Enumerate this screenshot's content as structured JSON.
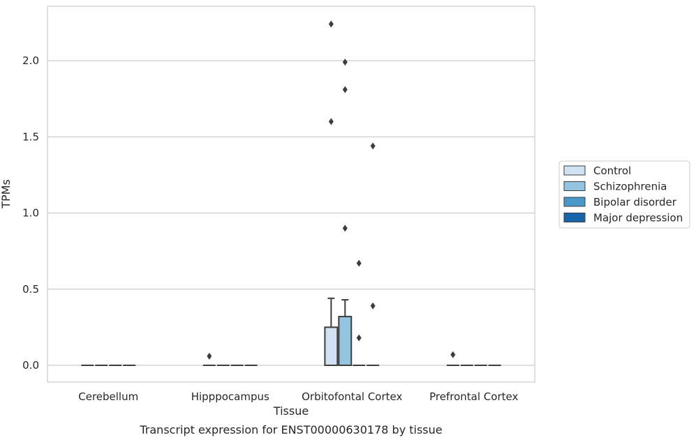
{
  "chart_data": {
    "type": "box",
    "title": "Transcript expression for ENST00000630178 by tissue",
    "xlabel": "Tissue",
    "ylabel": "TPMs",
    "ylim": [
      -0.11,
      2.36
    ],
    "yticks": [
      0.0,
      0.5,
      1.0,
      1.5,
      2.0
    ],
    "ytick_labels": [
      "0.0",
      "0.5",
      "1.0",
      "1.5",
      "2.0"
    ],
    "grid": "horizontal",
    "legend_position": "right",
    "categories": [
      "Cerebellum",
      "Hipppocampus",
      "Orbitofontal Cortex",
      "Prefrontal Cortex"
    ],
    "series": [
      {
        "name": "Control",
        "color": "#d0e1f2",
        "boxes": [
          {
            "q1": 0,
            "median": 0,
            "q3": 0,
            "whislo": 0,
            "whishi": 0,
            "fliers": []
          },
          {
            "q1": 0,
            "median": 0,
            "q3": 0,
            "whislo": 0,
            "whishi": 0,
            "fliers": [
              0.06
            ]
          },
          {
            "q1": 0,
            "median": 0,
            "q3": 0.25,
            "whislo": 0,
            "whishi": 0.44,
            "fliers": [
              2.24,
              1.6
            ]
          },
          {
            "q1": 0,
            "median": 0,
            "q3": 0,
            "whislo": 0,
            "whishi": 0,
            "fliers": [
              0.07
            ]
          }
        ]
      },
      {
        "name": "Schizophrenia",
        "color": "#94c4df",
        "boxes": [
          {
            "q1": 0,
            "median": 0,
            "q3": 0,
            "whislo": 0,
            "whishi": 0,
            "fliers": []
          },
          {
            "q1": 0,
            "median": 0,
            "q3": 0,
            "whislo": 0,
            "whishi": 0,
            "fliers": []
          },
          {
            "q1": 0,
            "median": 0,
            "q3": 0.32,
            "whislo": 0,
            "whishi": 0.43,
            "fliers": [
              1.99,
              1.81,
              0.9
            ]
          },
          {
            "q1": 0,
            "median": 0,
            "q3": 0,
            "whislo": 0,
            "whishi": 0,
            "fliers": []
          }
        ]
      },
      {
        "name": "Bipolar disorder",
        "color": "#4a98c9",
        "boxes": [
          {
            "q1": 0,
            "median": 0,
            "q3": 0,
            "whislo": 0,
            "whishi": 0,
            "fliers": []
          },
          {
            "q1": 0,
            "median": 0,
            "q3": 0,
            "whislo": 0,
            "whishi": 0,
            "fliers": []
          },
          {
            "q1": 0,
            "median": 0,
            "q3": 0,
            "whislo": 0,
            "whishi": 0,
            "fliers": [
              0.67,
              0.18
            ]
          },
          {
            "q1": 0,
            "median": 0,
            "q3": 0,
            "whislo": 0,
            "whishi": 0,
            "fliers": []
          }
        ]
      },
      {
        "name": "Major depression",
        "color": "#1764ab",
        "boxes": [
          {
            "q1": 0,
            "median": 0,
            "q3": 0,
            "whislo": 0,
            "whishi": 0,
            "fliers": []
          },
          {
            "q1": 0,
            "median": 0,
            "q3": 0,
            "whislo": 0,
            "whishi": 0,
            "fliers": []
          },
          {
            "q1": 0,
            "median": 0,
            "q3": 0,
            "whislo": 0,
            "whishi": 0,
            "fliers": [
              1.44,
              0.39
            ]
          },
          {
            "q1": 0,
            "median": 0,
            "q3": 0,
            "whislo": 0,
            "whishi": 0,
            "fliers": []
          }
        ]
      }
    ]
  }
}
